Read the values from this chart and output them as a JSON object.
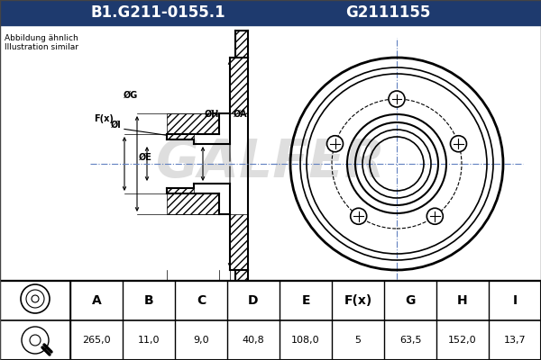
{
  "title_left": "B1.G211-0155.1",
  "title_right": "G2111155",
  "subtitle_line1": "Abbildung ähnlich",
  "subtitle_line2": "Illustration similar",
  "bg_color": "#f0f0f0",
  "header_bg": "#1e3a6e",
  "header_text_color": "#ffffff",
  "table_headers": [
    "A",
    "B",
    "C",
    "D",
    "E",
    "F(x)",
    "G",
    "H",
    "I"
  ],
  "table_values": [
    "265,0",
    "11,0",
    "9,0",
    "40,8",
    "108,0",
    "5",
    "63,5",
    "152,0",
    "13,7"
  ],
  "line_color": "#000000",
  "axis_color": "#6080c0",
  "watermark_color": "#c8c8c8"
}
